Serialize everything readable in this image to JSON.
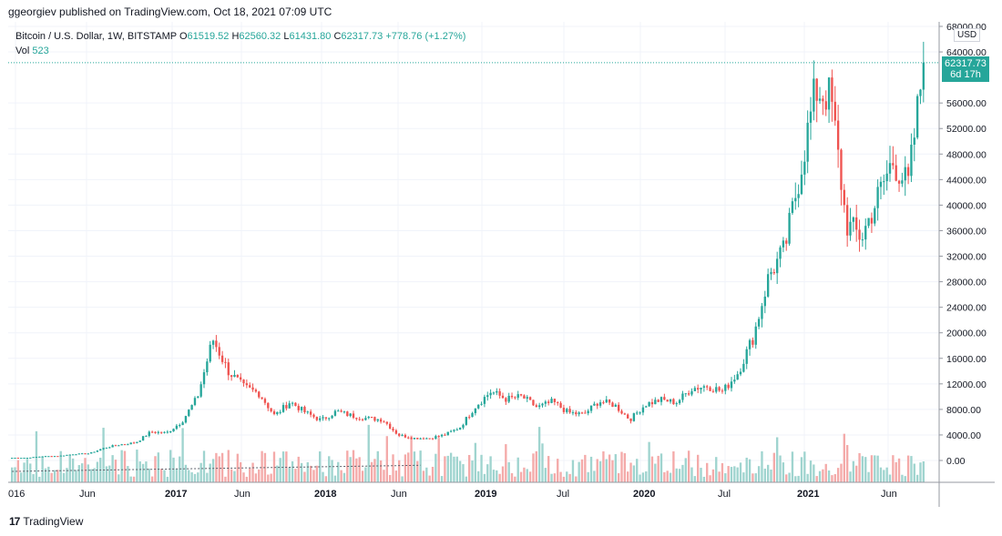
{
  "header": {
    "publisher_line": "ggeorgiev published on TradingView.com, Oct 18, 2021 07:09 UTC"
  },
  "legend": {
    "symbol": "Bitcoin / U.S. Dollar, 1W, BITSTAMP",
    "o_label": "O",
    "o_value": "61519.52",
    "h_label": "H",
    "h_value": "62560.32",
    "l_label": "L",
    "l_value": "61431.80",
    "c_label": "C",
    "c_value": "62317.73",
    "change": "+778.76 (+1.27%)",
    "vol_label": "Vol",
    "vol_value": "523"
  },
  "price_axis": {
    "currency": "USD",
    "last_price": "62317.73",
    "countdown": "6d 17h",
    "tick_labels": [
      "68000.00",
      "64000.00",
      "56000.00",
      "52000.00",
      "48000.00",
      "44000.00",
      "40000.00",
      "36000.00",
      "32000.00",
      "28000.00",
      "24000.00",
      "20000.00",
      "16000.00",
      "12000.00",
      "8000.00",
      "4000.00",
      "0.00"
    ]
  },
  "time_axis": {
    "tick_labels": [
      "016",
      "Jun",
      "2017",
      "Jun",
      "2018",
      "Jun",
      "2019",
      "Jul",
      "2020",
      "Jul",
      "2021",
      "Jun"
    ]
  },
  "footer": {
    "brand": "TradingView",
    "logo_glyph": "17"
  },
  "colors": {
    "up": "#26a69a",
    "down": "#ef5350",
    "vol_up": "#9fd4cf",
    "vol_down": "#f4aaa9",
    "grid": "#f0f3fa",
    "axis_text": "#131722",
    "last_price_line": "#26a69a"
  },
  "chart_data": {
    "type": "candlestick",
    "title": "Bitcoin / U.S. Dollar, 1W, BITSTAMP",
    "y_unit": "USD",
    "ylim": [
      0,
      68000
    ],
    "grid": true,
    "close_series": {
      "name": "Close",
      "x": [
        "2016-01",
        "2016-04",
        "2016-07",
        "2016-10",
        "2017-01",
        "2017-03",
        "2017-05",
        "2017-06",
        "2017-07",
        "2017-08",
        "2017-09",
        "2017-10",
        "2017-11",
        "2017-12-04",
        "2017-12-18",
        "2018-01",
        "2018-02",
        "2018-03",
        "2018-04",
        "2018-05",
        "2018-06",
        "2018-07",
        "2018-08",
        "2018-09",
        "2018-10",
        "2018-11",
        "2018-12",
        "2019-01",
        "2019-03",
        "2019-04",
        "2019-05",
        "2019-06",
        "2019-07",
        "2019-08",
        "2019-09",
        "2019-10",
        "2019-11",
        "2019-12",
        "2020-01",
        "2020-02",
        "2020-03",
        "2020-04",
        "2020-05",
        "2020-06",
        "2020-07",
        "2020-08",
        "2020-09",
        "2020-10",
        "2020-11",
        "2020-12",
        "2021-01",
        "2021-02",
        "2021-03",
        "2021-04",
        "2021-05",
        "2021-06",
        "2021-07",
        "2021-08",
        "2021-09",
        "2021-10"
      ],
      "values": [
        420,
        430,
        650,
        700,
        1000,
        1100,
        2000,
        2500,
        2800,
        4500,
        4300,
        6100,
        9900,
        19000,
        14000,
        11500,
        10500,
        7000,
        9200,
        7500,
        6300,
        7700,
        7000,
        6600,
        6400,
        4000,
        3500,
        3500,
        4000,
        5200,
        8500,
        10800,
        9600,
        10000,
        8300,
        9200,
        7500,
        7200,
        9300,
        8700,
        6400,
        8800,
        9500,
        9100,
        11300,
        11700,
        10800,
        13800,
        19500,
        29000,
        33000,
        45000,
        58000,
        57000,
        37000,
        35000,
        41000,
        47000,
        43000,
        62317.73
      ]
    },
    "annotations": {
      "last_price": 62317.73,
      "countdown": "6d 17h",
      "vol_last": 523
    }
  }
}
